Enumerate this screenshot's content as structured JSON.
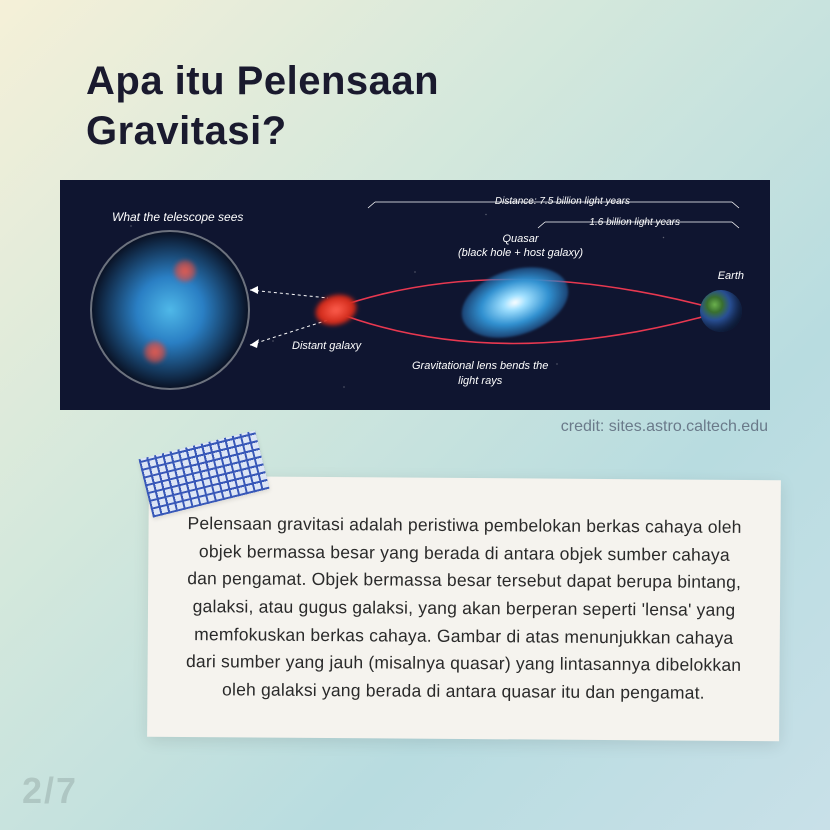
{
  "title": "Apa itu Pelensaan\nGravitasi?",
  "diagram": {
    "background_color": "#0f1530",
    "telescope_label": "What the telescope sees",
    "distant_galaxy_label": "Distant galaxy",
    "quasar_label_line1": "Quasar",
    "quasar_label_line2": "(black hole + host galaxy)",
    "earth_label": "Earth",
    "distance_1": "Distance: 7.5 billion light years",
    "distance_2": "1.6 billion light years",
    "gravitational_label_line1": "Gravitational lens bends the",
    "gravitational_label_line2": "light rays",
    "light_path_color": "#e83850",
    "dotted_line_color": "#ffffff",
    "telescope_glow_color": "#4fb8e8",
    "distant_galaxy_color": "#ff6050",
    "quasar_color": "#3090d0",
    "earth_colors": [
      "#6ab04c",
      "#2e5aa8"
    ]
  },
  "credit": "credit: sites.astro.caltech.edu",
  "tape_color": "#3858b8",
  "card_background": "#f5f3ee",
  "body_text": "Pelensaan gravitasi adalah peristiwa pembelokan berkas cahaya oleh objek bermassa besar yang berada di antara objek sumber cahaya dan pengamat. Objek bermassa besar tersebut dapat berupa bintang, galaksi, atau gugus galaksi, yang akan berperan seperti 'lensa' yang memfokuskan berkas cahaya. Gambar di atas menunjukkan cahaya dari sumber yang jauh (misalnya quasar) yang lintasannya dibelokkan oleh galaksi yang berada di antara quasar itu dan pengamat.",
  "page_number": "2/7",
  "title_color": "#1a1a2e",
  "title_fontsize": 40,
  "body_fontsize": 17.5
}
